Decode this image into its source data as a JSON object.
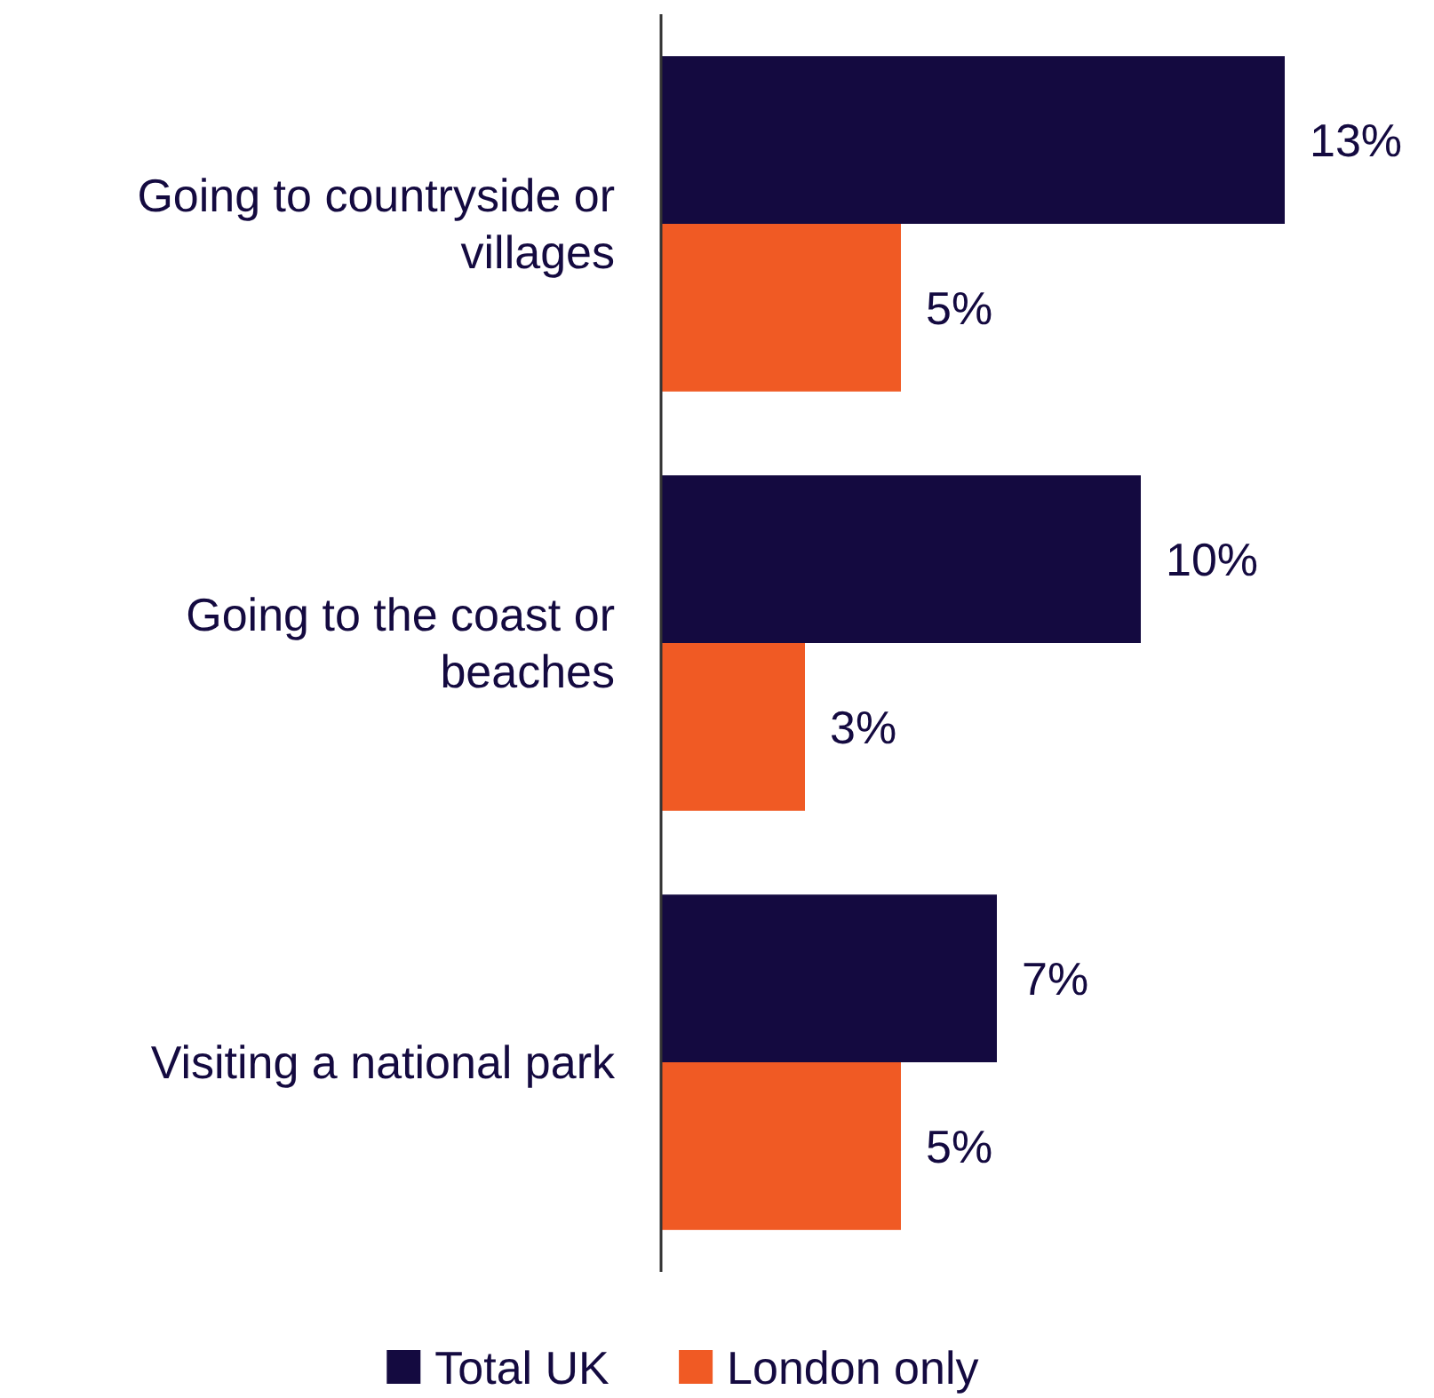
{
  "chart_data": {
    "type": "bar",
    "orientation": "horizontal",
    "categories": [
      "Going to countryside or villages",
      "Going to the coast or beaches",
      "Visiting a national park"
    ],
    "series": [
      {
        "name": "Total UK",
        "color": "#140a40",
        "values": [
          13,
          10,
          7
        ],
        "value_labels": [
          "13%",
          "10%",
          "7%"
        ]
      },
      {
        "name": "London only",
        "color": "#f05a24",
        "values": [
          5,
          3,
          5
        ],
        "value_labels": [
          "5%",
          "3%",
          "5%"
        ]
      }
    ],
    "legend": "bottom"
  }
}
